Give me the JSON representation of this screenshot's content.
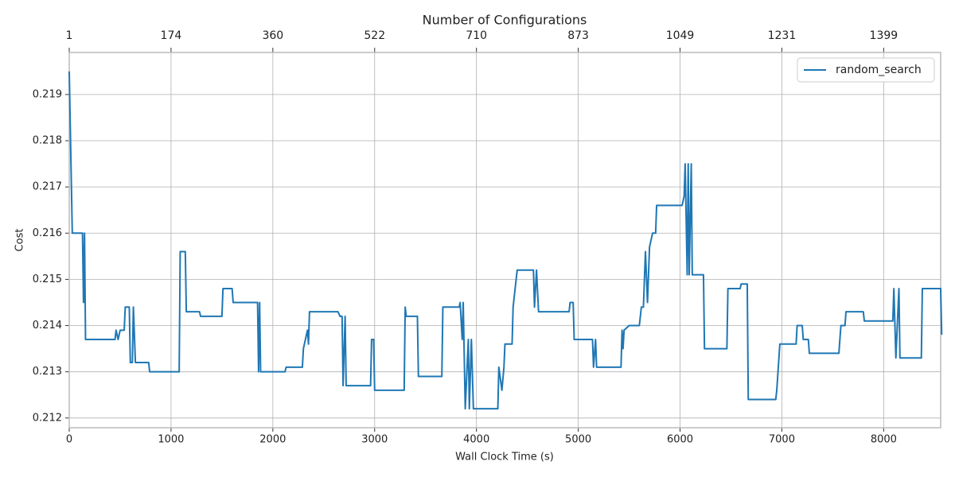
{
  "chart_data": {
    "type": "line",
    "title": "Number of Configurations",
    "x_label": "Wall Clock Time (s)",
    "y_label": "Cost",
    "x": [
      0,
      30,
      130,
      140,
      150,
      160,
      450,
      460,
      480,
      500,
      540,
      550,
      590,
      600,
      620,
      630,
      650,
      780,
      790,
      1080,
      1090,
      1140,
      1150,
      1280,
      1290,
      1500,
      1510,
      1600,
      1610,
      1850,
      1860,
      1870,
      1880,
      2120,
      2130,
      2290,
      2300,
      2340,
      2350,
      2360,
      2640,
      2660,
      2680,
      2690,
      2710,
      2720,
      2960,
      2970,
      2990,
      3000,
      3290,
      3300,
      3310,
      3420,
      3430,
      3660,
      3670,
      3830,
      3840,
      3860,
      3870,
      3890,
      3920,
      3930,
      3950,
      3970,
      4210,
      4220,
      4250,
      4270,
      4280,
      4350,
      4360,
      4400,
      4560,
      4570,
      4590,
      4610,
      4910,
      4920,
      4950,
      4960,
      5140,
      5150,
      5170,
      5180,
      5420,
      5430,
      5440,
      5450,
      5500,
      5600,
      5620,
      5640,
      5660,
      5680,
      5700,
      5730,
      5760,
      5770,
      5810,
      6020,
      6040,
      6050,
      6070,
      6080,
      6090,
      6110,
      6120,
      6230,
      6240,
      6460,
      6470,
      6590,
      6600,
      6660,
      6670,
      6940,
      6950,
      6980,
      7140,
      7150,
      7200,
      7210,
      7260,
      7270,
      7560,
      7580,
      7620,
      7630,
      7800,
      7810,
      8090,
      8100,
      8120,
      8150,
      8160,
      8370,
      8380,
      8560,
      8570
    ],
    "series": [
      {
        "name": "random_search",
        "color": "#1f77b4",
        "values": [
          0.2195,
          0.216,
          0.216,
          0.2145,
          0.216,
          0.2137,
          0.2137,
          0.2139,
          0.2137,
          0.2139,
          0.2139,
          0.2144,
          0.2144,
          0.2132,
          0.2132,
          0.2144,
          0.2132,
          0.2132,
          0.213,
          0.213,
          0.2156,
          0.2156,
          0.2143,
          0.2143,
          0.2142,
          0.2142,
          0.2148,
          0.2148,
          0.2145,
          0.2145,
          0.213,
          0.2145,
          0.213,
          0.213,
          0.2131,
          0.2131,
          0.2135,
          0.2139,
          0.2136,
          0.2143,
          0.2143,
          0.2142,
          0.2142,
          0.2127,
          0.2142,
          0.2127,
          0.2127,
          0.2137,
          0.2137,
          0.2126,
          0.2126,
          0.2144,
          0.2142,
          0.2142,
          0.2129,
          0.2129,
          0.2144,
          0.2144,
          0.2145,
          0.2137,
          0.2145,
          0.2122,
          0.2137,
          0.2122,
          0.2137,
          0.2122,
          0.2122,
          0.2131,
          0.2126,
          0.2131,
          0.2136,
          0.2136,
          0.2144,
          0.2152,
          0.2152,
          0.2144,
          0.2152,
          0.2143,
          0.2143,
          0.2145,
          0.2145,
          0.2137,
          0.2137,
          0.2131,
          0.2137,
          0.2131,
          0.2131,
          0.2139,
          0.2135,
          0.2139,
          0.214,
          0.214,
          0.2144,
          0.2144,
          0.2156,
          0.2145,
          0.2157,
          0.216,
          0.216,
          0.2166,
          0.2166,
          0.2166,
          0.2168,
          0.2175,
          0.2151,
          0.2175,
          0.2151,
          0.2175,
          0.2151,
          0.2151,
          0.2135,
          0.2135,
          0.2148,
          0.2148,
          0.2149,
          0.2149,
          0.2124,
          0.2124,
          0.2126,
          0.2136,
          0.2136,
          0.214,
          0.214,
          0.2137,
          0.2137,
          0.2134,
          0.2134,
          0.214,
          0.214,
          0.2143,
          0.2143,
          0.2141,
          0.2141,
          0.2148,
          0.2133,
          0.2148,
          0.2133,
          0.2133,
          0.2148,
          0.2148,
          0.2138
        ]
      }
    ],
    "xlim": [
      0,
      8560
    ],
    "ylim": [
      0.21179,
      0.21991
    ],
    "xticks": [
      0,
      1000,
      2000,
      3000,
      4000,
      5000,
      6000,
      7000,
      8000
    ],
    "yticks": [
      0.212,
      0.213,
      0.214,
      0.215,
      0.216,
      0.217,
      0.218,
      0.219
    ],
    "x2ticks": [
      {
        "value": 0,
        "label": "1"
      },
      {
        "value": 1000,
        "label": "174"
      },
      {
        "value": 2000,
        "label": "360"
      },
      {
        "value": 3000,
        "label": "522"
      },
      {
        "value": 4000,
        "label": "710"
      },
      {
        "value": 5000,
        "label": "873"
      },
      {
        "value": 6000,
        "label": "1049"
      },
      {
        "value": 7000,
        "label": "1231"
      },
      {
        "value": 8000,
        "label": "1399"
      }
    ],
    "grid": true,
    "legend": "upper-right"
  }
}
